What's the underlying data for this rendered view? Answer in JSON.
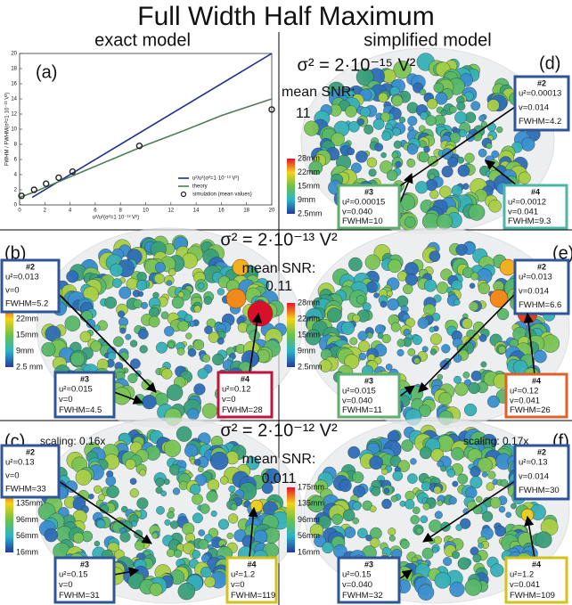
{
  "title": "Full Width Half Maximum",
  "columns": [
    "exact model",
    "simplified model"
  ],
  "chart_data": {
    "type": "line",
    "label": "(a)",
    "xlabel": "u²/u²(σ²=1·10⁻¹³ V²)",
    "ylabel": "FWHM / FWHM(σ²=1·10⁻¹³ V²)",
    "xlim": [
      0,
      20
    ],
    "ylim": [
      0,
      20
    ],
    "xticks": [
      0,
      2,
      4,
      6,
      8,
      10,
      12,
      14,
      16,
      18,
      20
    ],
    "yticks": [
      0,
      2,
      4,
      6,
      8,
      10,
      12,
      14,
      16,
      18,
      20
    ],
    "legend": "lower right",
    "series": [
      {
        "name": "u²/u²(σ²=1·10⁻¹³ V²)",
        "color": "#1c2e8c",
        "x": [
          1,
          20
        ],
        "values": [
          1,
          20
        ]
      },
      {
        "name": "theory",
        "color": "#4e7d5a",
        "x": [
          0,
          1,
          2,
          3,
          4,
          5,
          7,
          10,
          13,
          16,
          20
        ],
        "values": [
          1,
          1.6,
          2.3,
          3.0,
          3.7,
          4.4,
          5.8,
          7.9,
          9.8,
          11.8,
          14.0
        ]
      },
      {
        "name": "simulation (mean values)",
        "color": "#222222",
        "marker": "circle",
        "x": [
          0.15,
          1.15,
          2.1,
          3.1,
          4.2,
          9.5,
          20
        ],
        "values": [
          1.2,
          2.0,
          2.8,
          3.6,
          4.4,
          7.8,
          12.6
        ]
      }
    ]
  },
  "rows": [
    {
      "sigma": "σ² = 2·10⁻¹⁵ V²",
      "snr_label": "mean SNR:",
      "snr": "11"
    },
    {
      "sigma": "σ² = 2·10⁻¹³ V²",
      "snr_label": "mean SNR:",
      "snr": "0.11"
    },
    {
      "sigma": "σ² = 2·10⁻¹² V²",
      "snr_label": "mean SNR:",
      "snr": "0.011"
    }
  ],
  "panels": [
    {
      "label": "(b)",
      "colorbar": [
        "28mm",
        "22mm",
        "15mm",
        "9mm",
        "2.5 mm"
      ],
      "callouts": [
        {
          "id": "#2",
          "u": "u²=0.013",
          "v": "v=0",
          "fwhm": "FWHM=5.2",
          "color": "#2f5597"
        },
        {
          "id": "#3",
          "u": "u²=0.015",
          "v": "v=0",
          "fwhm": "FWHM=4.5",
          "color": "#2f5597"
        },
        {
          "id": "#4",
          "u": "u²=0.12",
          "v": "v=0",
          "fwhm": "FWHM=28",
          "color": "#c0143c"
        }
      ]
    },
    {
      "label": "(c)",
      "scaling": "scaling: 0.16x",
      "colorbar": [
        "175mm",
        "135mm",
        "96mm",
        "56mm",
        "16mm"
      ],
      "callouts": [
        {
          "id": "#2",
          "u": "u²=0.13",
          "v": "v=0",
          "fwhm": "FWHM=33",
          "color": "#2f5597"
        },
        {
          "id": "#3",
          "u": "u²=0.15",
          "v": "v=0",
          "fwhm": "FWHM=31",
          "color": "#2f5597"
        },
        {
          "id": "#4",
          "u": "u²=1.2",
          "v": "v=0",
          "fwhm": "FWHM=119",
          "color": "#d4c21a"
        }
      ]
    },
    {
      "label": "(d)",
      "colorbar": [
        "28mm",
        "22mm",
        "15mm",
        "9mm",
        "2.5mm"
      ],
      "callouts": [
        {
          "id": "#2",
          "u": "u²=0.00013",
          "v": "v=0.014",
          "fwhm": "FWHM=4.2",
          "color": "#2f5597"
        },
        {
          "id": "#3",
          "u": "u²=0.00015",
          "v": "v=0.040",
          "fwhm": "FWHM=10",
          "color": "#5fae6e"
        },
        {
          "id": "#4",
          "u": "u²=0.0012",
          "v": "v=0.041",
          "fwhm": "FWHM=9.3",
          "color": "#4fb5a8"
        }
      ]
    },
    {
      "label": "(e)",
      "colorbar": [
        "28mm",
        "22mm",
        "15mm",
        "9mm",
        "2.5mm"
      ],
      "callouts": [
        {
          "id": "#2",
          "u": "u²=0.013",
          "v": "v=0.014",
          "fwhm": "FWHM=6.6",
          "color": "#2f5597"
        },
        {
          "id": "#3",
          "u": "u²=0.015",
          "v": "v=0.040",
          "fwhm": "FWHM=11",
          "color": "#5fae6e"
        },
        {
          "id": "#4",
          "u": "u²=0.12",
          "v": "v=0.041",
          "fwhm": "FWHM=26",
          "color": "#e0602a"
        }
      ]
    },
    {
      "label": "(f)",
      "scaling": "scaling: 0.17x",
      "colorbar": [
        "175mm",
        "135mm",
        "96mm",
        "56mm",
        "16mm"
      ],
      "callouts": [
        {
          "id": "#2",
          "u": "u²=0.13",
          "v": "v=0.014",
          "fwhm": "FWHM=30",
          "color": "#2f5597"
        },
        {
          "id": "#3",
          "u": "u²=0.15",
          "v": "v=0.040",
          "fwhm": "FWHM=32",
          "color": "#2f5597"
        },
        {
          "id": "#4",
          "u": "u²=1.2",
          "v": "v=0.041",
          "fwhm": "FWHM=109",
          "color": "#d4c21a"
        }
      ]
    }
  ]
}
